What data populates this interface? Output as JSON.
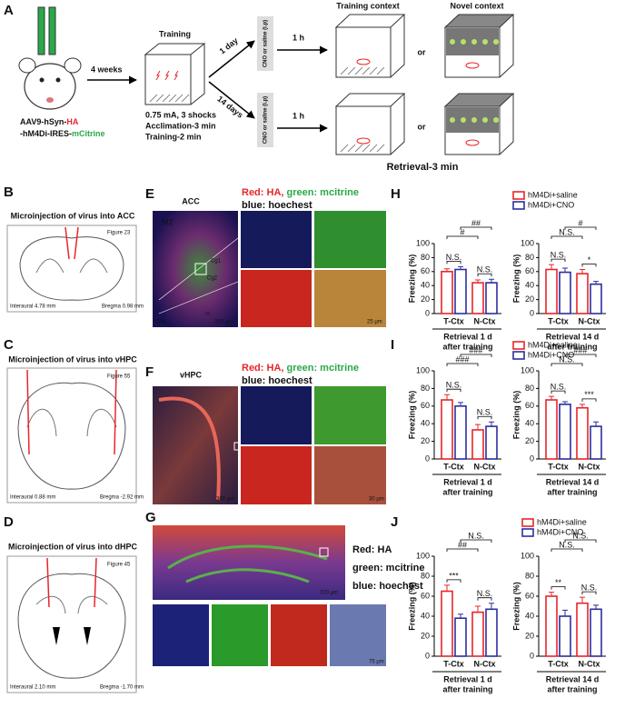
{
  "panels": {
    "A": {
      "letter": "A",
      "virus_1a": "AAV9-hSyn-",
      "virus_1b": "HA",
      "virus_2a": "-hM4Di-IRES-",
      "virus_2b": "mCitrine",
      "delay": "4 weeks",
      "training": "Training",
      "shock": "0.75 mA, 3 shocks",
      "acclimation": "Acclimation-3 min",
      "training_time": "Training-2 min",
      "day1": "1 day",
      "day14": "14 days",
      "injection": "CNO or saline (i.p)",
      "wait": "1 h",
      "training_context": "Training context",
      "novel_context": "Novel context",
      "or": "or",
      "retrieval": "Retrieval-3 min"
    },
    "B": {
      "letter": "B",
      "title": "Microinjection of virus into ACC",
      "figure": "Figure 23",
      "interaural": "Interaural 4.78 mm",
      "bregma": "Bregma 0.98 mm"
    },
    "C": {
      "letter": "C",
      "title": "Microinjection of virus into vHPC",
      "figure": "Figure 55",
      "interaural": "Interaural 0.88 mm",
      "bregma": "Bregma -2.92 mm"
    },
    "D": {
      "letter": "D",
      "title": "Microinjection of virus into dHPC",
      "figure": "Figure 45",
      "interaural": "Interaural 2.10 mm",
      "bregma": "Bregma -1.70 mm"
    },
    "E": {
      "letter": "E",
      "region": "ACC",
      "red": "Red: HA, ",
      "green": "green: mcitrine",
      "blue": "blue: hoechest",
      "m2": "M2",
      "cg1": "Cg1",
      "cg2": "Cg2",
      "cpu": "CPu",
      "cc": "cc",
      "scale_big": "200 μm",
      "scale_small": "25 μm"
    },
    "F": {
      "letter": "F",
      "region": "vHPC",
      "red": "Red: HA, ",
      "green": "green: mcitrine",
      "blue": "blue: hoechest",
      "scale_big": "300 μm",
      "scale_small": "30 μm"
    },
    "G": {
      "letter": "G",
      "red": "Red: HA",
      "green": "green: mcitrine",
      "blue": "blue: hoechest",
      "scale_big": "200 μm",
      "scale_small": "75 μm"
    },
    "H": {
      "letter": "H"
    },
    "I": {
      "letter": "I"
    },
    "J": {
      "letter": "J"
    }
  },
  "chart_data": [
    {
      "type": "bar",
      "ylabel": "Freezing (%)",
      "categories": [
        "T-Ctx",
        "N-Ctx"
      ],
      "xlabel": [
        "Retrieval 1 d",
        "after training"
      ],
      "ylim": [
        0,
        100
      ],
      "yticks": [
        0,
        20,
        40,
        60,
        80,
        100
      ],
      "series": [
        {
          "color": "#e8262a",
          "values": [
            60,
            44
          ],
          "errors": [
            4,
            4
          ]
        },
        {
          "color": "#2b2f9e",
          "values": [
            63,
            44
          ],
          "errors": [
            4,
            5
          ]
        }
      ],
      "annotations": [
        "N.S.",
        "#",
        "##",
        "N.S."
      ]
    },
    {
      "type": "bar",
      "ylabel": "Freezing (%)",
      "categories": [
        "T-Ctx",
        "N-Ctx"
      ],
      "xlabel": [
        "Retrieval 14 d",
        "after training"
      ],
      "ylim": [
        0,
        100
      ],
      "yticks": [
        0,
        20,
        40,
        60,
        80,
        100
      ],
      "series": [
        {
          "name": "hM4Di+saline",
          "color": "#e8262a",
          "values": [
            63,
            57
          ],
          "errors": [
            7,
            6
          ]
        },
        {
          "name": "hM4Di+CNO",
          "color": "#2b2f9e",
          "values": [
            59,
            42
          ],
          "errors": [
            6,
            4
          ]
        }
      ],
      "annotations": [
        "N.S.",
        "N.S.",
        "#",
        "*"
      ],
      "legend": true
    },
    {
      "type": "bar",
      "ylabel": "Freezing (%)",
      "categories": [
        "T-Ctx",
        "N-Ctx"
      ],
      "xlabel": [
        "Retrieval 1 d",
        "after training"
      ],
      "ylim": [
        0,
        100
      ],
      "yticks": [
        0,
        20,
        40,
        60,
        80,
        100
      ],
      "series": [
        {
          "color": "#e8262a",
          "values": [
            67,
            33
          ],
          "errors": [
            6,
            6
          ]
        },
        {
          "color": "#2b2f9e",
          "values": [
            60,
            37
          ],
          "errors": [
            4,
            5
          ]
        }
      ],
      "annotations": [
        "N.S.",
        "###",
        "###",
        "N.S."
      ]
    },
    {
      "type": "bar",
      "ylabel": "Freezing (%)",
      "categories": [
        "T-Ctx",
        "N-Ctx"
      ],
      "xlabel": [
        "Retrieval 14 d",
        "after training"
      ],
      "ylim": [
        0,
        100
      ],
      "yticks": [
        0,
        20,
        40,
        60,
        80,
        100
      ],
      "series": [
        {
          "name": "hM4Di+saline",
          "color": "#e8262a",
          "values": [
            67,
            58
          ],
          "errors": [
            4,
            4
          ]
        },
        {
          "name": "hM4Di+CNO",
          "color": "#2b2f9e",
          "values": [
            62,
            37
          ],
          "errors": [
            3,
            5
          ]
        }
      ],
      "annotations": [
        "N.S.",
        "N.S.",
        "###",
        "***"
      ],
      "legend": true
    },
    {
      "type": "bar",
      "ylabel": "Freezing (%)",
      "categories": [
        "T-Ctx",
        "N-Ctx"
      ],
      "xlabel": [
        "Retrieval 1 d",
        "after training"
      ],
      "ylim": [
        0,
        100
      ],
      "yticks": [
        0,
        20,
        40,
        60,
        80,
        100
      ],
      "series": [
        {
          "color": "#e8262a",
          "values": [
            65,
            44
          ],
          "errors": [
            6,
            6
          ]
        },
        {
          "color": "#2b2f9e",
          "values": [
            38,
            47
          ],
          "errors": [
            4,
            6
          ]
        }
      ],
      "annotations": [
        "***",
        "##",
        "N.S.",
        "N.S."
      ]
    },
    {
      "type": "bar",
      "ylabel": "Freezing (%)",
      "categories": [
        "T-Ctx",
        "N-Ctx"
      ],
      "xlabel": [
        "Retrieval 14 d",
        "after training"
      ],
      "ylim": [
        0,
        100
      ],
      "yticks": [
        0,
        20,
        40,
        60,
        80,
        100
      ],
      "series": [
        {
          "name": "hM4Di+saline",
          "color": "#e8262a",
          "values": [
            60,
            53
          ],
          "errors": [
            4,
            6
          ]
        },
        {
          "name": "hM4Di+CNO",
          "color": "#2b2f9e",
          "values": [
            40,
            47
          ],
          "errors": [
            6,
            4
          ]
        }
      ],
      "annotations": [
        "**",
        "N.S.",
        "N.S.",
        "N.S."
      ],
      "legend": true
    }
  ]
}
